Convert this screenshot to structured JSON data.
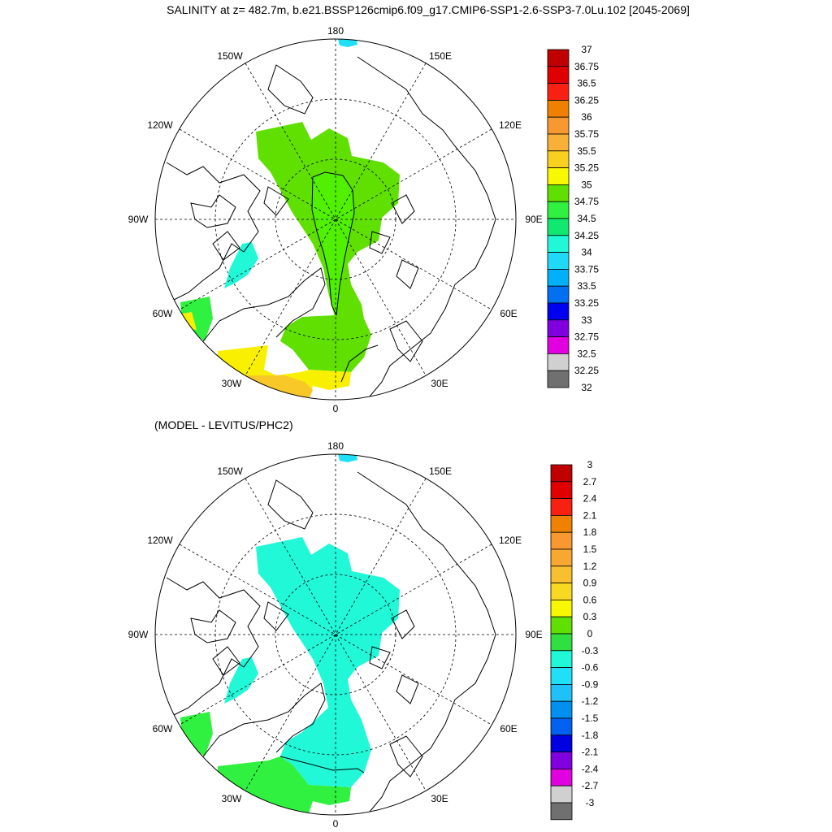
{
  "title": "SALINITY at z= 482.7m, b.e21.BSSP126cmip6.f09_g17.CMIP6-SSP1-2.6-SSP3-7.0Lu.102 [2045-2069]",
  "subtitle": "(MODEL - LEVITUS/PHC2)",
  "lon_labels": {
    "top": "180",
    "bottom": "0",
    "left_mid": "90W",
    "right_mid": "90E",
    "ul_high": "150W",
    "ur_high": "150E",
    "ul_low": "120W",
    "ur_low": "120E",
    "ll_high": "60W",
    "lr_high": "60E",
    "ll_low": "30W",
    "lr_low": "30E"
  },
  "colorbar_top": {
    "labels": [
      "37",
      "36.75",
      "36.5",
      "36.25",
      "36",
      "35.75",
      "35.5",
      "35.25",
      "35",
      "34.75",
      "34.5",
      "34.25",
      "34",
      "33.75",
      "33.5",
      "33.25",
      "33",
      "32.75",
      "32.5",
      "32.25",
      "32"
    ],
    "colors": [
      "#c00000",
      "#e00000",
      "#f82010",
      "#f08000",
      "#f89830",
      "#f8b038",
      "#f8d020",
      "#f8f800",
      "#60e000",
      "#30f040",
      "#10e870",
      "#20f8d8",
      "#20d8f8",
      "#00b0f8",
      "#0070f0",
      "#0000f0",
      "#8000e0",
      "#e000e0",
      "#d0d0d0",
      "#707070"
    ]
  },
  "colorbar_bottom": {
    "labels": [
      "3",
      "2.7",
      "2.4",
      "2.1",
      "1.8",
      "1.5",
      "1.2",
      "0.9",
      "0.6",
      "0.3",
      "0",
      "-0.3",
      "-0.6",
      "-0.9",
      "-1.2",
      "-1.5",
      "-1.8",
      "-2.1",
      "-2.4",
      "-2.7",
      "-3"
    ],
    "colors": [
      "#c00000",
      "#e00000",
      "#f82010",
      "#f08000",
      "#f89830",
      "#f8a830",
      "#f8c030",
      "#f8d820",
      "#f8f800",
      "#60e000",
      "#30e040",
      "#20f8d8",
      "#20e0f8",
      "#20c0f8",
      "#0090f0",
      "#0060f0",
      "#0000e0",
      "#8000e0",
      "#e000e0",
      "#d0d0d0",
      "#707070"
    ]
  },
  "field_colors": {
    "top_main": "#60e000",
    "top_inner": "#50f000",
    "top_atlantic": "#f8f000",
    "top_atlantic_orange": "#f8c828",
    "top_baffin": "#20f8d8",
    "top_labrador": "#30f040",
    "bottom_main": "#20f8d8",
    "bottom_atlantic": "#30f040",
    "pacific_patch": "#20e0f8",
    "land_line": "#000000"
  }
}
